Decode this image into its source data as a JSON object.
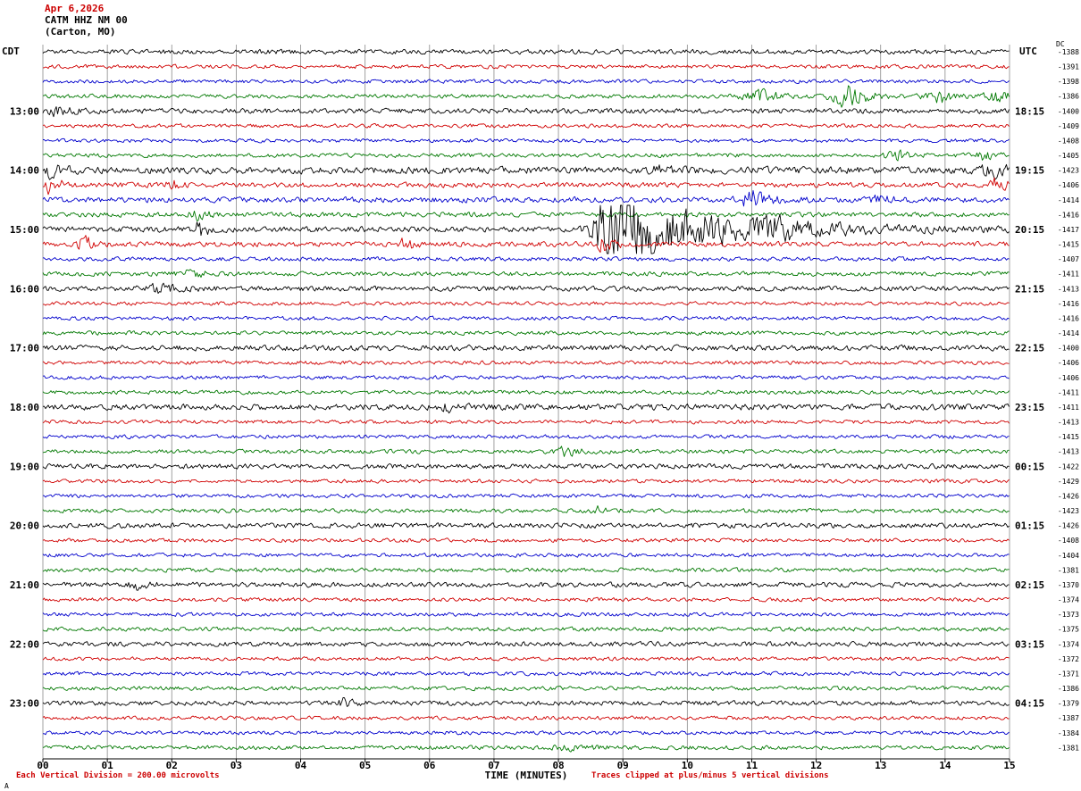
{
  "header": {
    "date": "Apr 6,2026",
    "station": "CATM HHZ NM 00",
    "location": "(Carton, MO)"
  },
  "axes": {
    "left_tz": "CDT",
    "right_tz": "UTC",
    "dc_header": "DC",
    "x_title": "TIME (MINUTES)",
    "x_ticks": [
      "00",
      "01",
      "02",
      "03",
      "04",
      "05",
      "06",
      "07",
      "08",
      "09",
      "10",
      "11",
      "12",
      "13",
      "14",
      "15"
    ]
  },
  "footer": {
    "left": "Each Vertical Division =  200.00 microvolts",
    "right": "Traces clipped at plus/minus 5 vertical divisions",
    "watermark": "A"
  },
  "colors": {
    "black": "#000000",
    "red": "#d00000",
    "blue": "#0000cc",
    "green": "#007800",
    "grid": "#8a8a8a",
    "accent_red": "#cc0000"
  },
  "chart_data": {
    "type": "line",
    "title": "Helicorder seismogram CATM HHZ NM 00 (Carton, MO) Apr 6,2026",
    "xlabel": "TIME (MINUTES)",
    "x_range_minutes": [
      0,
      15
    ],
    "minutes_per_row": 15,
    "rows_per_hour": 4,
    "color_cycle": [
      "black",
      "red",
      "blue",
      "green"
    ],
    "clip_note": "Traces clipped at plus/minus 5 vertical divisions",
    "scale_note": "Each Vertical Division = 200.00 microvolts",
    "left_hour_labels": [
      "13:00",
      "14:00",
      "15:00",
      "16:00",
      "17:00",
      "18:00",
      "19:00",
      "20:00",
      "21:00",
      "22:00",
      "23:00"
    ],
    "right_hour_labels": [
      "18:15",
      "19:15",
      "20:15",
      "21:15",
      "22:15",
      "23:15",
      "00:15",
      "01:15",
      "02:15",
      "03:15",
      "04:15"
    ],
    "rows": [
      {
        "color": "black",
        "dc": "-1388",
        "base": 1.5
      },
      {
        "color": "red",
        "dc": "-1391",
        "base": 1.2
      },
      {
        "color": "blue",
        "dc": "-1398",
        "base": 1.2
      },
      {
        "color": "green",
        "dc": "-1386",
        "base": 1.3,
        "events": [
          [
            10.5,
            11.2,
            12.0,
            4
          ],
          [
            11.9,
            12.5,
            13.5,
            8
          ],
          [
            13.4,
            13.95,
            14.5,
            5
          ],
          [
            14.4,
            14.8,
            15,
            5
          ]
        ]
      },
      {
        "color": "black",
        "left": "13:00",
        "right": "18:15",
        "dc": "-1400",
        "base": 1.6,
        "events": [
          [
            0,
            0.15,
            1.2,
            3
          ]
        ]
      },
      {
        "color": "red",
        "dc": "-1409",
        "base": 1.2
      },
      {
        "color": "blue",
        "dc": "-1408",
        "base": 1.2
      },
      {
        "color": "green",
        "dc": "-1405",
        "base": 1.3,
        "events": [
          [
            12.8,
            13.3,
            14.2,
            3
          ],
          [
            14.2,
            14.6,
            15,
            3
          ]
        ]
      },
      {
        "color": "black",
        "left": "14:00",
        "right": "19:15",
        "dc": "-1423",
        "base": 2.2,
        "events": [
          [
            0,
            0.05,
            0.8,
            5
          ],
          [
            9.3,
            9.6,
            10.2,
            3
          ],
          [
            14.3,
            14.8,
            15,
            5
          ]
        ]
      },
      {
        "color": "red",
        "dc": "-1406",
        "base": 1.6,
        "events": [
          [
            0,
            0.08,
            0.5,
            8
          ],
          [
            1.85,
            1.95,
            2.3,
            4
          ],
          [
            14.5,
            14.8,
            15,
            6
          ]
        ]
      },
      {
        "color": "blue",
        "dc": "-1414",
        "base": 1.8,
        "events": [
          [
            10.6,
            11.0,
            11.9,
            6
          ],
          [
            12.7,
            13.0,
            13.5,
            3
          ]
        ]
      },
      {
        "color": "green",
        "dc": "-1416",
        "base": 1.5,
        "events": [
          [
            2.1,
            2.4,
            3.0,
            3
          ]
        ]
      },
      {
        "color": "black",
        "left": "15:00",
        "right": "20:15",
        "dc": "-1417",
        "base": 1.8,
        "events": [
          [
            2.3,
            2.4,
            2.7,
            6
          ],
          [
            8.3,
            8.75,
            15,
            26
          ],
          [
            10.9,
            11.4,
            12.3,
            5
          ]
        ]
      },
      {
        "color": "red",
        "dc": "-1415",
        "base": 1.6,
        "events": [
          [
            0.45,
            0.6,
            1.0,
            7
          ],
          [
            5.5,
            5.6,
            5.85,
            5
          ],
          [
            8.5,
            8.65,
            9.0,
            6
          ]
        ]
      },
      {
        "color": "blue",
        "dc": "-1407",
        "base": 1.3
      },
      {
        "color": "green",
        "dc": "-1411",
        "base": 1.4,
        "events": [
          [
            1.9,
            2.3,
            3.2,
            2.5
          ]
        ]
      },
      {
        "color": "black",
        "left": "16:00",
        "right": "21:15",
        "dc": "-1413",
        "base": 1.6,
        "events": [
          [
            1.3,
            1.8,
            3.0,
            3
          ]
        ]
      },
      {
        "color": "red",
        "dc": "-1416",
        "base": 1.2
      },
      {
        "color": "blue",
        "dc": "-1416",
        "base": 1.2
      },
      {
        "color": "green",
        "dc": "-1414",
        "base": 1.3
      },
      {
        "color": "black",
        "left": "17:00",
        "right": "22:15",
        "dc": "-1400",
        "base": 1.8
      },
      {
        "color": "red",
        "dc": "-1406",
        "base": 1.2
      },
      {
        "color": "blue",
        "dc": "-1406",
        "base": 1.2
      },
      {
        "color": "green",
        "dc": "-1411",
        "base": 1.3
      },
      {
        "color": "black",
        "left": "18:00",
        "right": "23:15",
        "dc": "-1411",
        "base": 1.9,
        "events": [
          [
            6.0,
            6.3,
            7.0,
            2.5
          ]
        ]
      },
      {
        "color": "red",
        "dc": "-1413",
        "base": 1.2
      },
      {
        "color": "blue",
        "dc": "-1415",
        "base": 1.2
      },
      {
        "color": "green",
        "dc": "-1413",
        "base": 1.3,
        "events": [
          [
            7.7,
            8.1,
            8.9,
            3
          ]
        ]
      },
      {
        "color": "black",
        "left": "19:00",
        "right": "00:15",
        "dc": "-1422",
        "base": 1.6
      },
      {
        "color": "red",
        "dc": "-1429",
        "base": 1.2
      },
      {
        "color": "blue",
        "dc": "-1426",
        "base": 1.2
      },
      {
        "color": "green",
        "dc": "-1423",
        "base": 1.3,
        "events": [
          [
            8.3,
            8.6,
            9.2,
            2.5
          ]
        ]
      },
      {
        "color": "black",
        "left": "20:00",
        "right": "01:15",
        "dc": "-1426",
        "base": 1.6
      },
      {
        "color": "red",
        "dc": "-1408",
        "base": 1.2
      },
      {
        "color": "blue",
        "dc": "-1404",
        "base": 1.2
      },
      {
        "color": "green",
        "dc": "-1381",
        "base": 1.3
      },
      {
        "color": "black",
        "left": "21:00",
        "right": "02:15",
        "dc": "-1370",
        "base": 1.6,
        "events": [
          [
            1.2,
            1.45,
            1.9,
            3
          ]
        ]
      },
      {
        "color": "red",
        "dc": "-1374",
        "base": 1.2
      },
      {
        "color": "blue",
        "dc": "-1373",
        "base": 1.2
      },
      {
        "color": "green",
        "dc": "-1375",
        "base": 1.3
      },
      {
        "color": "black",
        "left": "22:00",
        "right": "03:15",
        "dc": "-1374",
        "base": 1.5
      },
      {
        "color": "red",
        "dc": "-1372",
        "base": 1.2
      },
      {
        "color": "blue",
        "dc": "-1371",
        "base": 1.2
      },
      {
        "color": "green",
        "dc": "-1386",
        "base": 1.3
      },
      {
        "color": "black",
        "left": "23:00",
        "right": "04:15",
        "dc": "-1379",
        "base": 1.5,
        "events": [
          [
            4.5,
            4.65,
            5.0,
            2.5
          ]
        ]
      },
      {
        "color": "red",
        "dc": "-1387",
        "base": 1.2
      },
      {
        "color": "blue",
        "dc": "-1384",
        "base": 1.2
      },
      {
        "color": "green",
        "dc": "-1381",
        "base": 1.3,
        "events": [
          [
            7.5,
            8.2,
            9.5,
            1.5
          ]
        ]
      }
    ]
  }
}
